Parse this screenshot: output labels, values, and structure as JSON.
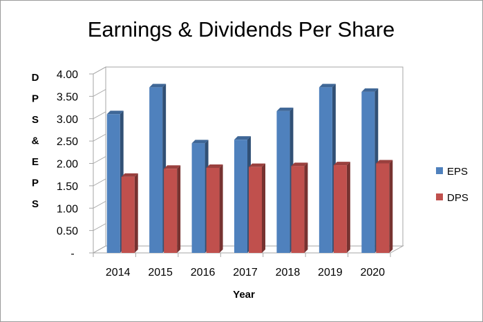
{
  "chart_data": {
    "type": "bar",
    "style": "3d-clustered-column",
    "title": "Earnings & Dividends Per Share",
    "xlabel": "Year",
    "ylabel": "DPS & EPS",
    "categories": [
      "2014",
      "2015",
      "2016",
      "2017",
      "2018",
      "2019",
      "2020"
    ],
    "series": [
      {
        "name": "EPS",
        "color": "#4F81BD",
        "values": [
          3.1,
          3.7,
          2.45,
          2.53,
          3.17,
          3.7,
          3.6
        ]
      },
      {
        "name": "DPS",
        "color": "#C0504D",
        "values": [
          1.7,
          1.88,
          1.9,
          1.92,
          1.94,
          1.96,
          2.0
        ]
      }
    ],
    "ylim": [
      0,
      4
    ],
    "yticks": [
      "-",
      "0.50",
      "1.00",
      "1.50",
      "2.00",
      "2.50",
      "3.00",
      "3.50",
      "4.00"
    ],
    "grid": false,
    "legend_position": "right"
  }
}
